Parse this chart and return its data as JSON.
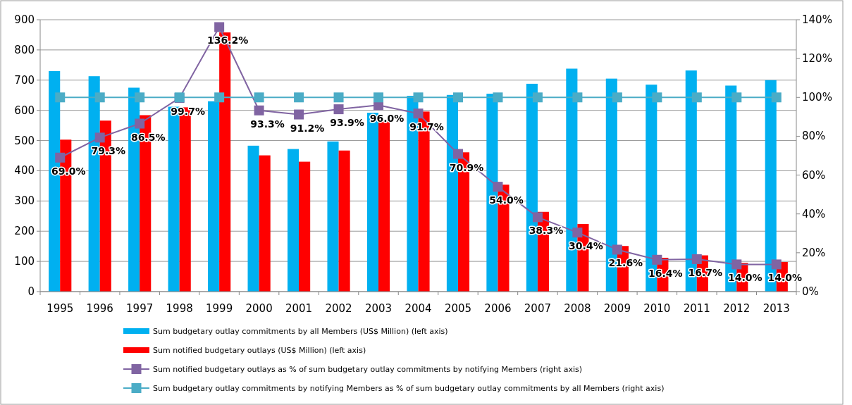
{
  "chart_data": {
    "type": "bar",
    "categories": [
      "1995",
      "1996",
      "1997",
      "1998",
      "1999",
      "2000",
      "2001",
      "2002",
      "2003",
      "2004",
      "2005",
      "2006",
      "2007",
      "2008",
      "2009",
      "2010",
      "2011",
      "2012",
      "2013"
    ],
    "series": [
      {
        "name": "Sum budgetary outlay commitments by all Members (US$ Million) (left axis)",
        "color": "#00b0f0",
        "values": [
          730,
          713,
          675,
          612,
          630,
          483,
          472,
          497,
          592,
          648,
          651,
          655,
          688,
          738,
          705,
          685,
          732,
          682,
          700
        ]
      },
      {
        "name": "Sum notified budgetary outlays (US$ Million) (left axis)",
        "color": "#ff0000",
        "values": [
          503,
          566,
          584,
          610,
          858,
          451,
          430,
          467,
          568,
          596,
          461,
          354,
          264,
          224,
          151,
          112,
          120,
          95,
          98
        ]
      },
      {
        "name": "Sum notified budgetary outlays as % of sum budgetary outlay commitments by notifying Members (right axis)",
        "type": "line",
        "axis": "y2",
        "marker": "square",
        "color": "#8064a2",
        "values": [
          69.0,
          79.3,
          86.5,
          99.7,
          136.2,
          93.3,
          91.2,
          93.9,
          96.0,
          91.7,
          70.9,
          54.0,
          38.3,
          30.4,
          21.6,
          16.4,
          16.7,
          14.0,
          14.0
        ],
        "value_labels": [
          "69.0%",
          "79.3%",
          "86.5%",
          "99.7%",
          "136.2%",
          "93.3%",
          "91.2%",
          "93.9%",
          "96.0%",
          "91.7%",
          "70.9%",
          "54.0%",
          "38.3%",
          "30.4%",
          "21.6%",
          "16.4%",
          "16.7%",
          "14.0%",
          "14.0%"
        ]
      },
      {
        "name": "Sum budgetary outlay commitments by notifying Members as % of sum budgetary outlay commitments by all Members (right axis)",
        "type": "line",
        "axis": "y2",
        "marker": "square",
        "color": "#4bacc6",
        "values": [
          100,
          100,
          100,
          100,
          100,
          100,
          100,
          100,
          100,
          100,
          100,
          100,
          100,
          100,
          100,
          100,
          100,
          100,
          100
        ]
      }
    ],
    "ylim": [
      0,
      900
    ],
    "yticks": [
      0,
      100,
      200,
      300,
      400,
      500,
      600,
      700,
      800,
      900
    ],
    "y2lim": [
      0,
      140
    ],
    "y2ticks": [
      {
        "value": 0,
        "label": "0%"
      },
      {
        "value": 20,
        "label": "20%"
      },
      {
        "value": 40,
        "label": "40%"
      },
      {
        "value": 60,
        "label": "60%"
      },
      {
        "value": 80,
        "label": "80%"
      },
      {
        "value": 100,
        "label": "100%"
      },
      {
        "value": 120,
        "label": "120%"
      },
      {
        "value": 140,
        "label": "140%"
      }
    ],
    "grid": "y",
    "legend": "bottom"
  }
}
